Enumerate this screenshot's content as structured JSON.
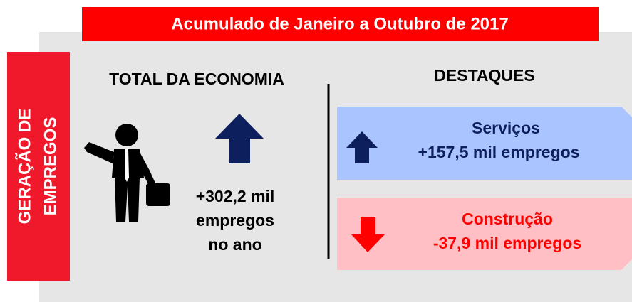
{
  "header": {
    "title": "Acumulado de Janeiro a Outubro de 2017"
  },
  "side_label": {
    "lines": [
      "GERAÇÃO DE",
      "EMPREGOS"
    ]
  },
  "total": {
    "title": "TOTAL DA ECONOMIA",
    "lines": [
      "+302,2 mil",
      "empregos",
      "no ano"
    ]
  },
  "highlights": {
    "title": "DESTAQUES",
    "items": [
      {
        "sector": "Serviços",
        "value": "+157,5 mil empregos"
      },
      {
        "sector": "Construção",
        "value": "-37,9 mil empregos"
      }
    ]
  }
}
